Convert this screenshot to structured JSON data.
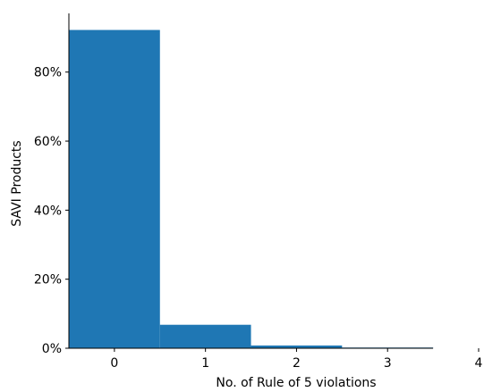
{
  "chart_data": {
    "type": "bar",
    "categories": [
      "0",
      "1",
      "2",
      "3",
      "4"
    ],
    "x": [
      0,
      1,
      2,
      3
    ],
    "values": [
      92.2,
      6.8,
      0.8,
      0.2
    ],
    "xlabel": "No. of Rule of 5 violations",
    "ylabel": "SAVI Products",
    "ylim": [
      0,
      97
    ],
    "xlim": [
      -0.5,
      4
    ],
    "yticks": [
      0,
      20,
      40,
      60,
      80
    ],
    "ytick_labels": [
      "0%",
      "20%",
      "40%",
      "60%",
      "80%"
    ],
    "xticks": [
      0,
      1,
      2,
      3,
      4
    ],
    "xtick_labels": [
      "0",
      "1",
      "2",
      "3",
      "4"
    ],
    "bar_color": "#1f77b4",
    "grid": false,
    "legend": "none"
  }
}
